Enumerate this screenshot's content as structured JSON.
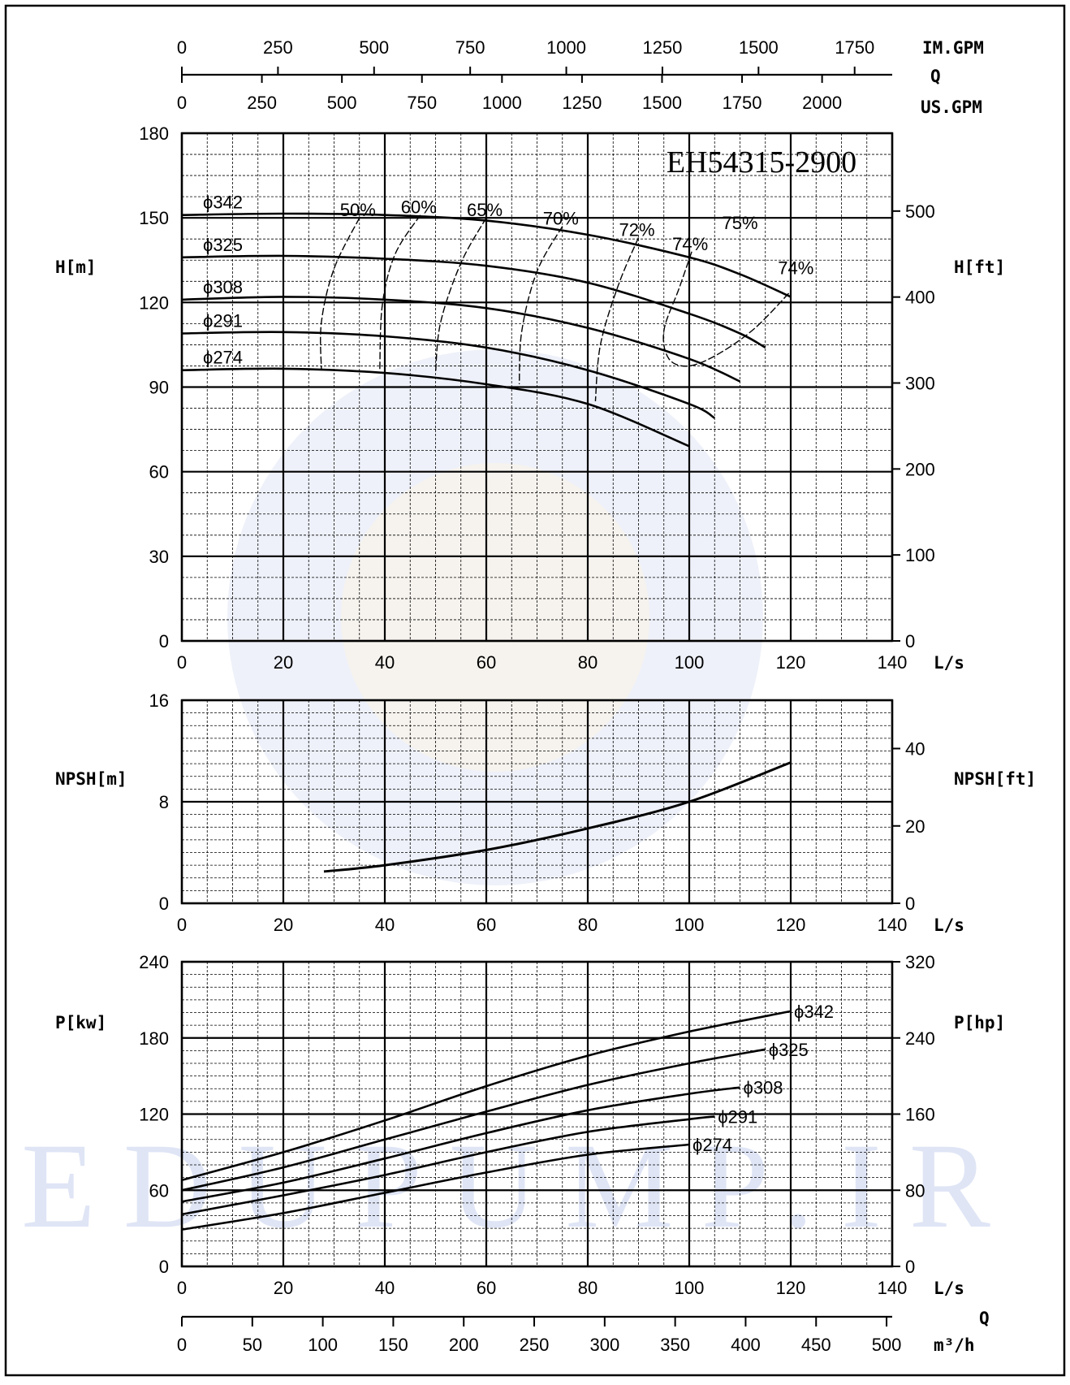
{
  "chart_data": {
    "type": "line",
    "title": "EH54315-2900",
    "watermark": "EDUPUMP.IR",
    "colors": {
      "curve": "#000000",
      "grid": "#000000",
      "watermark": "#dfe5f5"
    },
    "top_axes": {
      "q_label": "Q",
      "im_gpm": {
        "label": "IM.GPM",
        "ticks": [
          0,
          250,
          500,
          750,
          1000,
          1250,
          1500,
          1750
        ]
      },
      "us_gpm": {
        "label": "US.GPM",
        "ticks": [
          0,
          250,
          500,
          750,
          1000,
          1250,
          1500,
          1750,
          2000
        ]
      }
    },
    "bottom_axis": {
      "q_label": "Q",
      "label": "m³/h",
      "ticks": [
        0,
        50,
        100,
        150,
        200,
        250,
        300,
        350,
        400,
        450,
        500
      ]
    },
    "x_axis": {
      "label": "L/s",
      "range": [
        0,
        140
      ],
      "ticks": [
        0,
        20,
        40,
        60,
        80,
        100,
        120,
        140
      ]
    },
    "head": {
      "ylabel": "H[m]",
      "ylabel_right": "H[ft]",
      "ylim": [
        0,
        180
      ],
      "yticks": [
        0,
        30,
        60,
        90,
        120,
        150,
        180
      ],
      "yticks_right": [
        0,
        100,
        200,
        300,
        400,
        500
      ],
      "series": [
        {
          "name": "ϕ342",
          "x": [
            0,
            20,
            40,
            60,
            80,
            100,
            110,
            120
          ],
          "y": [
            151,
            151.5,
            151,
            149,
            144,
            136,
            130,
            122
          ]
        },
        {
          "name": "ϕ325",
          "x": [
            0,
            20,
            40,
            60,
            80,
            100,
            110,
            115
          ],
          "y": [
            136,
            136.5,
            135.5,
            133,
            127,
            116,
            109,
            104
          ]
        },
        {
          "name": "ϕ308",
          "x": [
            0,
            20,
            40,
            60,
            80,
            100,
            110
          ],
          "y": [
            121,
            122,
            121,
            118,
            111,
            100,
            92
          ]
        },
        {
          "name": "ϕ291",
          "x": [
            0,
            20,
            40,
            60,
            80,
            100,
            105
          ],
          "y": [
            109,
            109.5,
            108,
            104,
            96,
            84,
            79
          ]
        },
        {
          "name": "ϕ274",
          "x": [
            0,
            20,
            40,
            60,
            80,
            100
          ],
          "y": [
            96,
            96.5,
            95,
            91,
            84,
            69
          ]
        }
      ],
      "efficiency": [
        {
          "label": "50%",
          "x": [
            35,
            30,
            27.5,
            27.5
          ],
          "y": [
            150,
            132,
            113,
            96
          ]
        },
        {
          "label": "60%",
          "x": [
            47,
            42,
            39.5,
            39
          ],
          "y": [
            151,
            137,
            119,
            96
          ]
        },
        {
          "label": "65%",
          "x": [
            60,
            55,
            51,
            50
          ],
          "y": [
            150,
            134,
            113,
            95
          ]
        },
        {
          "label": "70%",
          "x": [
            75,
            70,
            67,
            66.5
          ],
          "y": [
            147,
            131,
            110,
            91
          ]
        },
        {
          "label": "72%",
          "x": [
            90,
            86,
            82.5,
            81.5
          ],
          "y": [
            143,
            126,
            105,
            85
          ]
        },
        {
          "label": "74%",
          "x": [
            100.5,
            98,
            95,
            96,
            100,
            106,
            113,
            120
          ],
          "y": [
            138,
            125,
            110,
            100,
            97.5,
            102,
            111,
            124
          ]
        }
      ],
      "efficiency_extra_labels": [
        "75%",
        "74%"
      ]
    },
    "npsh": {
      "ylabel": "NPSH[m]",
      "ylabel_right": "NPSH[ft]",
      "ylim": [
        0,
        16
      ],
      "yticks": [
        0,
        8,
        16
      ],
      "yticks_right": [
        0,
        20,
        40
      ],
      "x": [
        28,
        40,
        60,
        80,
        100,
        120
      ],
      "y": [
        2.5,
        3.0,
        4.2,
        5.9,
        8.0,
        11.1
      ]
    },
    "power": {
      "ylabel": "P[kw]",
      "ylabel_right": "P[hp]",
      "ylim": [
        0,
        240
      ],
      "yticks": [
        0,
        60,
        120,
        180,
        240
      ],
      "yticks_right": [
        0,
        80,
        160,
        240,
        320
      ],
      "series": [
        {
          "name": "ϕ342",
          "x": [
            0,
            20,
            40,
            60,
            80,
            100,
            120
          ],
          "y": [
            68,
            90,
            115,
            142,
            166,
            185,
            201
          ]
        },
        {
          "name": "ϕ325",
          "x": [
            0,
            20,
            40,
            60,
            80,
            100,
            115
          ],
          "y": [
            60,
            78,
            100,
            122,
            143,
            160,
            171
          ]
        },
        {
          "name": "ϕ308",
          "x": [
            0,
            20,
            40,
            60,
            80,
            100,
            110
          ],
          "y": [
            51,
            66,
            85,
            105,
            123,
            136,
            141
          ]
        },
        {
          "name": "ϕ291",
          "x": [
            0,
            20,
            40,
            60,
            80,
            100,
            105
          ],
          "y": [
            41,
            56,
            72,
            90,
            106,
            116,
            118
          ]
        },
        {
          "name": "ϕ274",
          "x": [
            0,
            20,
            40,
            60,
            80,
            100
          ],
          "y": [
            29,
            42,
            58,
            74,
            88,
            96
          ]
        }
      ]
    }
  }
}
